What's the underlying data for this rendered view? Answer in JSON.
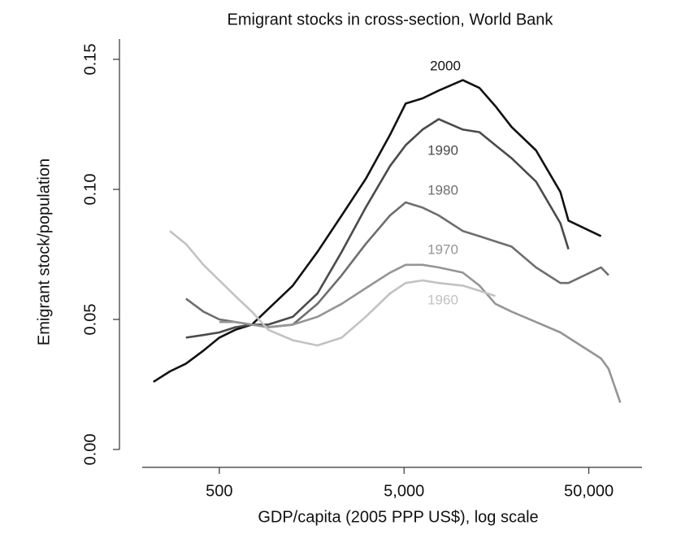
{
  "chart_data": {
    "type": "line",
    "title": "Emigrant stocks in cross-section, World Bank",
    "x_label": "GDP/capita (2005 PPP US$), log scale",
    "y_label": "Emigrant stock/population",
    "x_scale": "log",
    "xlim": [
      180,
      100000
    ],
    "ylim": [
      -0.005,
      0.16
    ],
    "xticks": [
      500,
      {
        "value": 5000,
        "label": "5,000"
      },
      {
        "value": 50000,
        "label": "50,000"
      }
    ],
    "yticks": [
      {
        "value": 0,
        "label": "0.00"
      },
      {
        "value": 0.05,
        "label": "0.05"
      },
      {
        "value": 0.1,
        "label": "0.10"
      },
      {
        "value": 0.15,
        "label": "0.15"
      }
    ],
    "x": [
      220,
      270,
      330,
      410,
      500,
      610,
      750,
      920,
      1250,
      1700,
      2300,
      3100,
      4200,
      5100,
      6300,
      7700,
      10400,
      12800,
      15600,
      19100,
      25900,
      35100,
      38800,
      58200,
      64000,
      74000
    ],
    "series": [
      {
        "name": "2000",
        "color": "#111111",
        "values": [
          0.026,
          0.03,
          0.033,
          0.038,
          0.043,
          0.046,
          0.048,
          0.054,
          0.063,
          0.076,
          0.09,
          0.104,
          0.121,
          0.133,
          0.135,
          0.138,
          0.142,
          0.139,
          0.132,
          0.124,
          0.115,
          0.099,
          0.088,
          0.082,
          null,
          null
        ]
      },
      {
        "name": "1990",
        "color": "#4a4a4a",
        "values": [
          null,
          null,
          0.043,
          0.044,
          0.045,
          0.047,
          0.048,
          0.048,
          0.051,
          0.06,
          0.076,
          0.093,
          0.109,
          0.117,
          0.123,
          0.127,
          0.123,
          0.122,
          0.117,
          0.112,
          0.103,
          0.087,
          0.077,
          null,
          null,
          null
        ]
      },
      {
        "name": "1980",
        "color": "#6e6e6e",
        "values": [
          null,
          null,
          0.058,
          0.053,
          0.05,
          0.049,
          0.048,
          0.047,
          0.048,
          0.056,
          0.067,
          0.079,
          0.09,
          0.095,
          0.093,
          0.09,
          0.084,
          0.082,
          0.08,
          0.078,
          0.07,
          0.064,
          0.064,
          0.07,
          0.067,
          null
        ]
      },
      {
        "name": "1970",
        "color": "#959595",
        "values": [
          null,
          null,
          null,
          null,
          0.049,
          0.049,
          0.048,
          0.047,
          0.048,
          0.051,
          0.056,
          0.062,
          0.068,
          0.071,
          0.071,
          0.07,
          0.068,
          0.063,
          0.056,
          0.053,
          0.049,
          0.045,
          0.043,
          0.035,
          0.031,
          0.018
        ]
      },
      {
        "name": "1960",
        "color": "#c2c2c2",
        "values": [
          null,
          0.084,
          0.079,
          0.071,
          0.065,
          0.059,
          0.053,
          0.046,
          0.042,
          0.04,
          0.043,
          0.051,
          0.06,
          0.064,
          0.065,
          0.064,
          0.063,
          0.061,
          0.059,
          null,
          null,
          null,
          null,
          null,
          null,
          null
        ]
      }
    ]
  }
}
